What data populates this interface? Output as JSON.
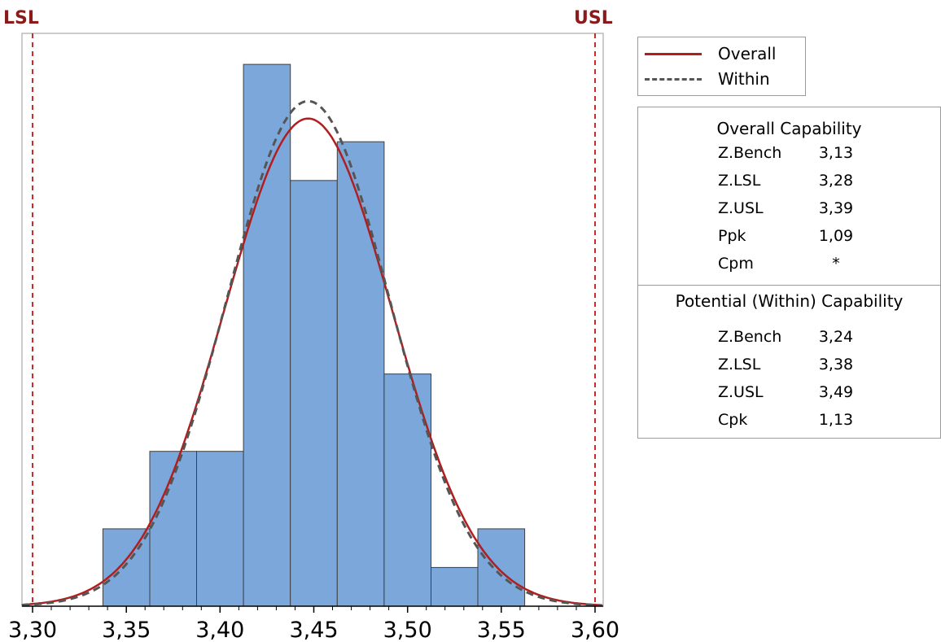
{
  "chart_data": {
    "type": "bar",
    "xlim": [
      3.3,
      3.6
    ],
    "x_ticks": [
      "3,30",
      "3,35",
      "3,40",
      "3,45",
      "3,50",
      "3,55",
      "3,60"
    ],
    "spec_limits": {
      "lsl": {
        "label": "LSL",
        "value": 3.3
      },
      "usl": {
        "label": "USL",
        "value": 3.6
      }
    },
    "bins": [
      {
        "start": 3.3375,
        "end": 3.3625,
        "value": 2
      },
      {
        "start": 3.3625,
        "end": 3.3875,
        "value": 4
      },
      {
        "start": 3.3875,
        "end": 3.4125,
        "value": 4
      },
      {
        "start": 3.4125,
        "end": 3.4375,
        "value": 14
      },
      {
        "start": 3.4375,
        "end": 3.4625,
        "value": 11
      },
      {
        "start": 3.4625,
        "end": 3.4875,
        "value": 12
      },
      {
        "start": 3.4875,
        "end": 3.5125,
        "value": 6
      },
      {
        "start": 3.5125,
        "end": 3.5375,
        "value": 1
      },
      {
        "start": 3.5375,
        "end": 3.5625,
        "value": 2
      }
    ],
    "ylim": [
      0,
      14.8
    ],
    "curves": [
      {
        "name": "Overall",
        "style": "solid",
        "color": "#b01e1e",
        "peak_x": 3.447,
        "peak_y": 12.6,
        "sigma": 0.0448
      },
      {
        "name": "Within",
        "style": "dashed",
        "color": "#555555",
        "peak_x": 3.447,
        "peak_y": 13.05,
        "sigma": 0.0435
      }
    ],
    "colors": {
      "bar_fill": "#7ba7db",
      "bar_stroke": "#3f3f3f",
      "spec_line": "#cc2b2b",
      "spec_label": "#8b1a1a"
    }
  },
  "legend": {
    "items": [
      {
        "label": "Overall"
      },
      {
        "label": "Within"
      }
    ]
  },
  "overall_capability": {
    "title": "Overall Capability",
    "rows": [
      {
        "label": "Z.Bench",
        "value": "3,13"
      },
      {
        "label": "Z.LSL",
        "value": "3,28"
      },
      {
        "label": "Z.USL",
        "value": "3,39"
      },
      {
        "label": "Ppk",
        "value": "1,09"
      },
      {
        "label": "Cpm",
        "value": "*"
      }
    ]
  },
  "potential_capability": {
    "title": "Potential (Within) Capability",
    "rows": [
      {
        "label": "Z.Bench",
        "value": "3,24"
      },
      {
        "label": "Z.LSL",
        "value": "3,38"
      },
      {
        "label": "Z.USL",
        "value": "3,49"
      },
      {
        "label": "Cpk",
        "value": "1,13"
      }
    ]
  }
}
